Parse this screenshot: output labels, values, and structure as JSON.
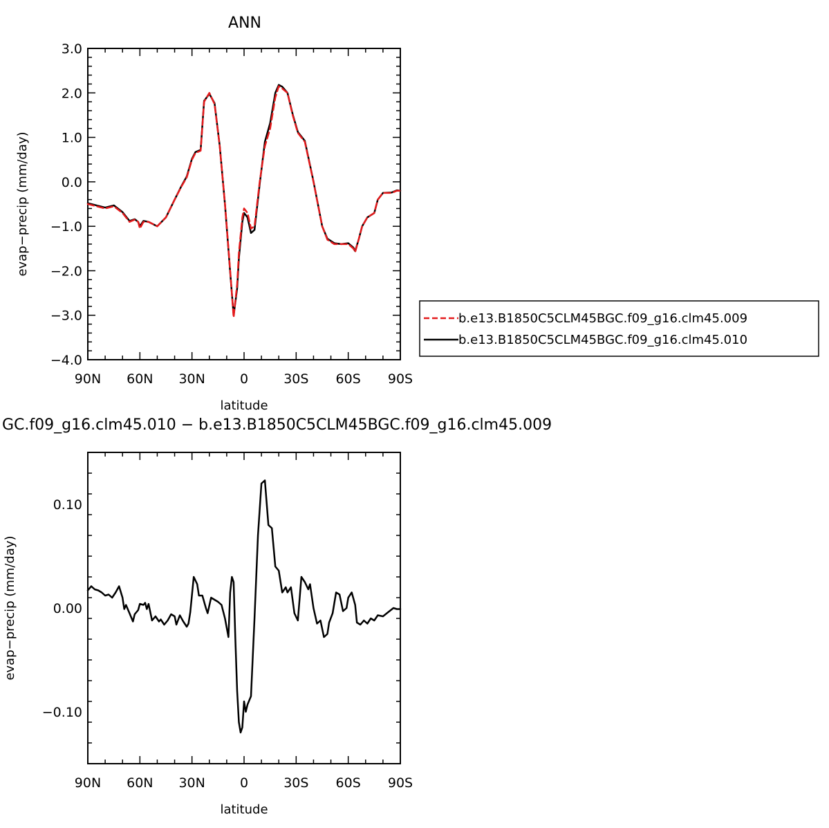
{
  "chart_data": [
    {
      "type": "line",
      "title": "ANN",
      "xlabel": "latitude",
      "ylabel": "evap−precip (mm/day)",
      "xlim": [
        -90,
        90
      ],
      "ylim": [
        -4,
        3
      ],
      "x_direction": "north-to-south",
      "x_ticks": [
        {
          "value": -90,
          "label": "90N"
        },
        {
          "value": -60,
          "label": "60N"
        },
        {
          "value": -30,
          "label": "30N"
        },
        {
          "value": 0,
          "label": "0"
        },
        {
          "value": 30,
          "label": "30S"
        },
        {
          "value": 60,
          "label": "60S"
        },
        {
          "value": 90,
          "label": "90S"
        }
      ],
      "y_ticks": [
        {
          "value": 3,
          "label": "3.0"
        },
        {
          "value": 2,
          "label": "2.0"
        },
        {
          "value": 1,
          "label": "1.0"
        },
        {
          "value": 0,
          "label": "0.0"
        },
        {
          "value": -1,
          "label": "−1.0"
        },
        {
          "value": -2,
          "label": "−2.0"
        },
        {
          "value": -3,
          "label": "−3.0"
        },
        {
          "value": -4,
          "label": "−4.0"
        }
      ],
      "grid": false,
      "legend": "right",
      "series": [
        {
          "name": "b.e13.B1850C5CLM45BGC.f09_g16.clm45.009",
          "color": "#e41a1c",
          "dash": "dashed",
          "x": [
            -90,
            -85,
            -80,
            -75,
            -70,
            -66,
            -63,
            -61,
            -60,
            -58,
            -55,
            -50,
            -45,
            -40,
            -36,
            -33,
            -30,
            -28,
            -25,
            -23,
            -20,
            -17,
            -14,
            -11,
            -8,
            -6,
            -4,
            -3,
            -1,
            0,
            2,
            4,
            6,
            9,
            12,
            15,
            18,
            20,
            22,
            25,
            28,
            31,
            35,
            40,
            45,
            48,
            52,
            56,
            60,
            63,
            64,
            66,
            68,
            71,
            75,
            77,
            80,
            85,
            88,
            90
          ],
          "y": [
            -0.5,
            -0.55,
            -0.6,
            -0.55,
            -0.7,
            -0.9,
            -0.85,
            -0.9,
            -1.05,
            -0.9,
            -0.9,
            -1.0,
            -0.8,
            -0.4,
            -0.1,
            0.1,
            0.5,
            0.65,
            0.7,
            1.8,
            2.0,
            1.75,
            0.8,
            -0.5,
            -2.0,
            -3.05,
            -2.3,
            -1.6,
            -0.8,
            -0.6,
            -0.7,
            -1.05,
            -1.0,
            0.0,
            0.8,
            1.2,
            1.9,
            2.15,
            2.1,
            2.0,
            1.5,
            1.1,
            0.9,
            0.0,
            -1.0,
            -1.3,
            -1.4,
            -1.4,
            -1.4,
            -1.5,
            -1.58,
            -1.3,
            -1.0,
            -0.8,
            -0.7,
            -0.4,
            -0.25,
            -0.25,
            -0.2,
            -0.2
          ]
        },
        {
          "name": "b.e13.B1850C5CLM45BGC.f09_g16.clm45.010",
          "color": "#000000",
          "dash": "solid",
          "x": [
            -90,
            -85,
            -80,
            -75,
            -70,
            -66,
            -63,
            -61,
            -60,
            -58,
            -55,
            -50,
            -45,
            -40,
            -36,
            -33,
            -30,
            -28,
            -25,
            -23,
            -20,
            -17,
            -14,
            -11,
            -8,
            -6,
            -4,
            -3,
            -1,
            0,
            2,
            4,
            6,
            9,
            12,
            15,
            18,
            20,
            22,
            25,
            28,
            31,
            35,
            40,
            45,
            48,
            52,
            56,
            60,
            63,
            64,
            66,
            68,
            71,
            75,
            77,
            80,
            85,
            88,
            90
          ],
          "y": [
            -0.48,
            -0.53,
            -0.58,
            -0.53,
            -0.68,
            -0.88,
            -0.84,
            -0.9,
            -1.0,
            -0.88,
            -0.9,
            -1.0,
            -0.8,
            -0.4,
            -0.09,
            0.12,
            0.52,
            0.67,
            0.72,
            1.82,
            1.98,
            1.77,
            0.81,
            -0.51,
            -2.03,
            -3.0,
            -2.4,
            -1.72,
            -0.9,
            -0.7,
            -0.8,
            -1.15,
            -1.08,
            -0.05,
            0.9,
            1.32,
            2.0,
            2.18,
            2.14,
            2.0,
            1.52,
            1.12,
            0.92,
            0.01,
            -1.0,
            -1.28,
            -1.38,
            -1.4,
            -1.38,
            -1.48,
            -1.56,
            -1.3,
            -1.0,
            -0.8,
            -0.7,
            -0.4,
            -0.25,
            -0.24,
            -0.19,
            -0.2
          ]
        }
      ]
    },
    {
      "type": "line",
      "title": "GC.f09_g16.clm45.010 − b.e13.B1850C5CLM45BGC.f09_g16.clm45.009",
      "xlabel": "latitude",
      "ylabel": "evap−precip (mm/day)",
      "xlim": [
        -90,
        90
      ],
      "ylim": [
        -0.15,
        0.15
      ],
      "x_direction": "north-to-south",
      "x_ticks": [
        {
          "value": -90,
          "label": "90N"
        },
        {
          "value": -60,
          "label": "60N"
        },
        {
          "value": -30,
          "label": "30N"
        },
        {
          "value": 0,
          "label": "0"
        },
        {
          "value": 30,
          "label": "30S"
        },
        {
          "value": 60,
          "label": "60S"
        },
        {
          "value": 90,
          "label": "90S"
        }
      ],
      "y_ticks": [
        {
          "value": 0.1,
          "label": "0.10"
        },
        {
          "value": 0.0,
          "label": "0.00"
        },
        {
          "value": -0.1,
          "label": "−0.10"
        }
      ],
      "grid": false,
      "series": [
        {
          "color": "#000000",
          "dash": "solid",
          "x": [
            -90,
            -88,
            -86,
            -84,
            -82,
            -80,
            -78,
            -76,
            -74,
            -72,
            -70,
            -69,
            -68,
            -66,
            -64,
            -63,
            -61,
            -60,
            -58,
            -57,
            -56,
            -55,
            -53,
            -51,
            -49,
            -48,
            -46,
            -44,
            -42,
            -40,
            -39,
            -37,
            -35,
            -33,
            -32,
            -31,
            -29,
            -27,
            -26,
            -24,
            -22,
            -21,
            -19,
            -17,
            -15,
            -13,
            -11,
            -9,
            -8,
            -7,
            -6,
            -5,
            -4,
            -3,
            -2,
            -1,
            0,
            1,
            2,
            4,
            6,
            8,
            10,
            12,
            14,
            16,
            18,
            20,
            22,
            24,
            25,
            27,
            29,
            31,
            33,
            35,
            37,
            38,
            40,
            42,
            44,
            46,
            48,
            49,
            51,
            53,
            55,
            57,
            59,
            60,
            62,
            64,
            65,
            67,
            69,
            71,
            73,
            75,
            77,
            80,
            83,
            86,
            88,
            90
          ],
          "y": [
            0.017,
            0.021,
            0.018,
            0.017,
            0.015,
            0.012,
            0.013,
            0.01,
            0.015,
            0.021,
            0.01,
            -0.001,
            0.003,
            -0.005,
            -0.013,
            -0.006,
            -0.002,
            0.004,
            0.003,
            0.005,
            -0.001,
            0.004,
            -0.012,
            -0.008,
            -0.013,
            -0.011,
            -0.016,
            -0.012,
            -0.006,
            -0.008,
            -0.016,
            -0.007,
            -0.013,
            -0.018,
            -0.015,
            -0.004,
            0.03,
            0.023,
            0.012,
            0.012,
            0.0,
            -0.005,
            0.01,
            0.008,
            0.006,
            0.003,
            -0.01,
            -0.028,
            0.015,
            0.03,
            0.025,
            -0.03,
            -0.08,
            -0.11,
            -0.12,
            -0.115,
            -0.09,
            -0.1,
            -0.093,
            -0.085,
            -0.01,
            0.07,
            0.12,
            0.123,
            0.08,
            0.077,
            0.04,
            0.036,
            0.015,
            0.02,
            0.015,
            0.02,
            -0.005,
            -0.012,
            0.03,
            0.025,
            0.018,
            0.023,
            0.0,
            -0.015,
            -0.012,
            -0.028,
            -0.025,
            -0.014,
            -0.005,
            0.015,
            0.013,
            -0.003,
            0.0,
            0.01,
            0.015,
            0.003,
            -0.014,
            -0.016,
            -0.012,
            -0.015,
            -0.01,
            -0.012,
            -0.007,
            -0.008,
            -0.004,
            0.0,
            -0.001,
            -0.001
          ]
        }
      ]
    }
  ]
}
